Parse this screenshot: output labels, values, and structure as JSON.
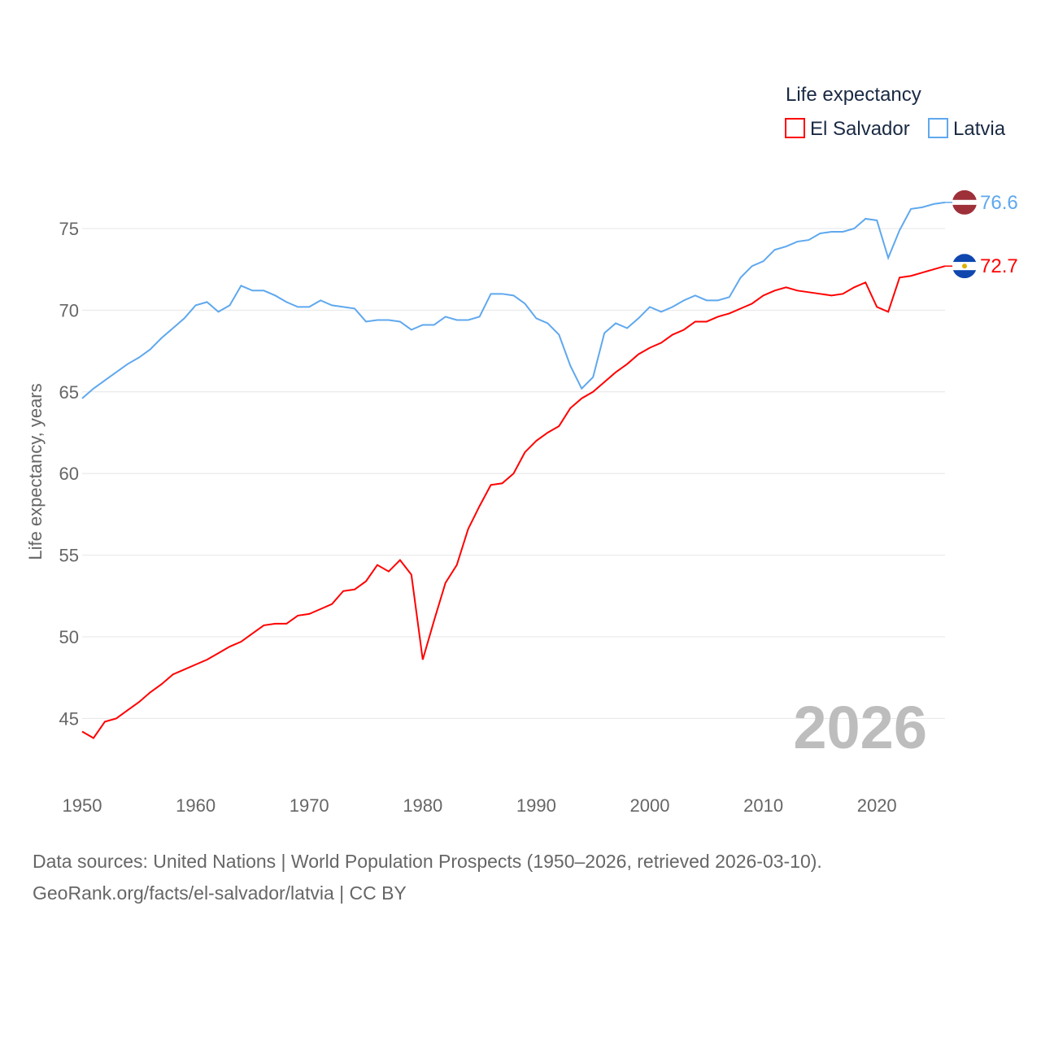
{
  "chart_data": {
    "type": "line",
    "ylabel": "Life expectancy, years",
    "xlabel": "",
    "legend_title": "Life expectancy",
    "legend_position": "top-right",
    "year_label": "2026",
    "xlim": [
      1950,
      2026
    ],
    "ylim": [
      42.5,
      78.5
    ],
    "xticks": [
      1950,
      1960,
      1970,
      1980,
      1990,
      2000,
      2010,
      2020
    ],
    "yticks": [
      45,
      50,
      55,
      60,
      65,
      70,
      75
    ],
    "grid": true,
    "x_start": 1950,
    "series": [
      {
        "name": "El Salvador",
        "color": "#ff0000",
        "end_label": "72.7",
        "values": [
          44.2,
          43.8,
          44.8,
          45.0,
          45.5,
          46.0,
          46.6,
          47.1,
          47.7,
          48.0,
          48.3,
          48.6,
          49.0,
          49.4,
          49.7,
          50.2,
          50.7,
          50.8,
          50.8,
          51.3,
          51.4,
          51.7,
          52.0,
          52.8,
          52.9,
          53.4,
          54.4,
          54.0,
          54.7,
          53.8,
          48.6,
          51.0,
          53.3,
          54.4,
          56.6,
          58.0,
          59.3,
          59.4,
          60.0,
          61.3,
          62.0,
          62.5,
          62.9,
          64.0,
          64.6,
          65.0,
          65.6,
          66.2,
          66.7,
          67.3,
          67.7,
          68.0,
          68.5,
          68.8,
          69.3,
          69.3,
          69.6,
          69.8,
          70.1,
          70.4,
          70.9,
          71.2,
          71.4,
          71.2,
          71.1,
          71.0,
          70.9,
          71.0,
          71.4,
          71.7,
          70.2,
          69.9,
          72.0,
          72.1,
          72.3,
          72.5,
          72.7
        ]
      },
      {
        "name": "Latvia",
        "color": "#5fa8ee",
        "end_label": "76.6",
        "values": [
          64.6,
          65.2,
          65.7,
          66.2,
          66.7,
          67.1,
          67.6,
          68.3,
          68.9,
          69.5,
          70.3,
          70.5,
          69.9,
          70.3,
          71.5,
          71.2,
          71.2,
          70.9,
          70.5,
          70.2,
          70.2,
          70.6,
          70.3,
          70.2,
          70.1,
          69.3,
          69.4,
          69.4,
          69.3,
          68.8,
          69.1,
          69.1,
          69.6,
          69.4,
          69.4,
          69.6,
          71.0,
          71.0,
          70.9,
          70.4,
          69.5,
          69.2,
          68.5,
          66.6,
          65.2,
          65.9,
          68.6,
          69.2,
          68.9,
          69.5,
          70.2,
          69.9,
          70.2,
          70.6,
          70.9,
          70.6,
          70.6,
          70.8,
          72.0,
          72.7,
          73.0,
          73.7,
          73.9,
          74.2,
          74.3,
          74.7,
          74.8,
          74.8,
          75.0,
          75.6,
          75.5,
          73.2,
          74.9,
          76.2,
          76.3,
          76.5,
          76.6
        ]
      }
    ]
  },
  "footer": {
    "line1": "Data sources: United Nations | World Population Prospects (1950–2026, retrieved 2026-03-10).",
    "line2": "GeoRank.org/facts/el-salvador/latvia | CC BY"
  }
}
